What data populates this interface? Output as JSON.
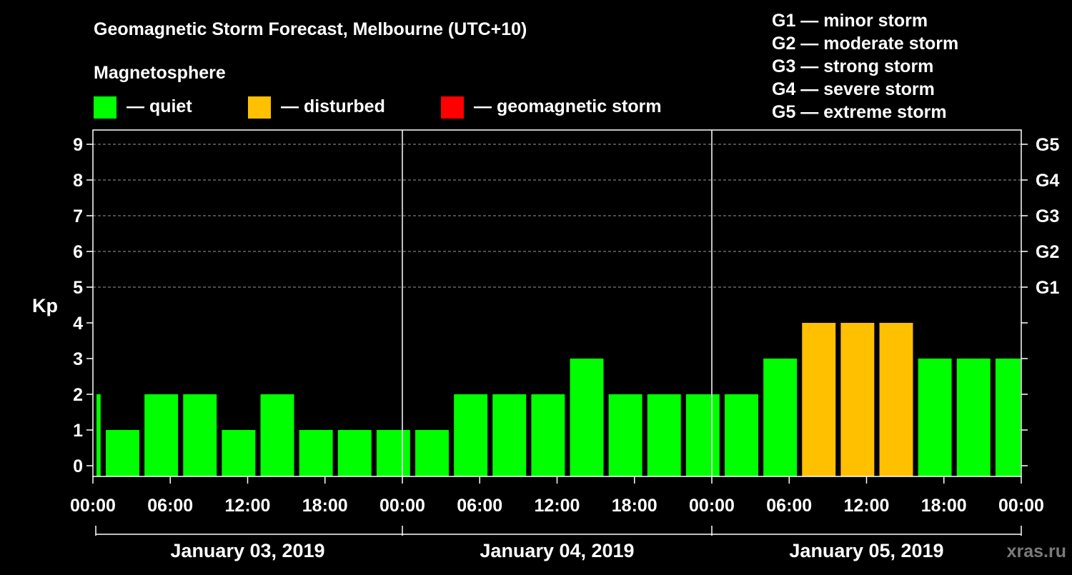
{
  "chart_data": {
    "type": "bar",
    "title": "Geomagnetic Storm Forecast, Melbourne (UTC+10)",
    "legend_heading": "Magnetosphere",
    "legend": [
      {
        "label": "— quiet",
        "color": "#00ff00"
      },
      {
        "label": "— disturbed",
        "color": "#ffc000"
      },
      {
        "label": "— geomagnetic storm",
        "color": "#ff0000"
      }
    ],
    "storm_scale": [
      "G1 — minor storm",
      "G2 — moderate storm",
      "G3 — strong storm",
      "G4 — severe storm",
      "G5 — extreme storm"
    ],
    "ylabel": "Kp",
    "ylim": [
      -0.3,
      9.4
    ],
    "y_ticks": [
      0,
      1,
      2,
      3,
      4,
      5,
      6,
      7,
      8,
      9
    ],
    "right_ticks": [
      {
        "value": 5,
        "label": "G1"
      },
      {
        "value": 6,
        "label": "G2"
      },
      {
        "value": 7,
        "label": "G3"
      },
      {
        "value": 8,
        "label": "G4"
      },
      {
        "value": 9,
        "label": "G5"
      }
    ],
    "minor_right_ticks": [
      0,
      1,
      2,
      3,
      4
    ],
    "grid_levels": [
      5,
      6,
      7,
      8,
      9
    ],
    "x_range_hours": [
      0,
      72
    ],
    "x_tick_labels": [
      "00:00",
      "06:00",
      "12:00",
      "18:00",
      "00:00",
      "06:00",
      "12:00",
      "18:00",
      "00:00",
      "06:00",
      "12:00",
      "18:00",
      "00:00"
    ],
    "days": [
      "January 03, 2019",
      "January 04, 2019",
      "January 05, 2019"
    ],
    "bar_start_hours": [
      -2,
      1,
      4,
      7,
      10,
      13,
      16,
      19,
      22,
      25,
      28,
      31,
      34,
      37,
      40,
      43,
      46,
      49,
      52,
      55,
      58,
      61,
      64,
      67,
      70
    ],
    "bar_width_hours": 2.6,
    "values": [
      2,
      1,
      2,
      2,
      1,
      2,
      1,
      1,
      1,
      1,
      2,
      2,
      2,
      3,
      2,
      2,
      2,
      2,
      3,
      4,
      4,
      4,
      3,
      3,
      3
    ],
    "status": [
      "quiet",
      "quiet",
      "quiet",
      "quiet",
      "quiet",
      "quiet",
      "quiet",
      "quiet",
      "quiet",
      "quiet",
      "quiet",
      "quiet",
      "quiet",
      "quiet",
      "quiet",
      "quiet",
      "quiet",
      "quiet",
      "quiet",
      "disturbed",
      "disturbed",
      "disturbed",
      "quiet",
      "quiet",
      "quiet"
    ],
    "status_colors": {
      "quiet": "#00ff00",
      "disturbed": "#ffc000",
      "storm": "#ff0000"
    },
    "watermark": "xras.ru"
  }
}
